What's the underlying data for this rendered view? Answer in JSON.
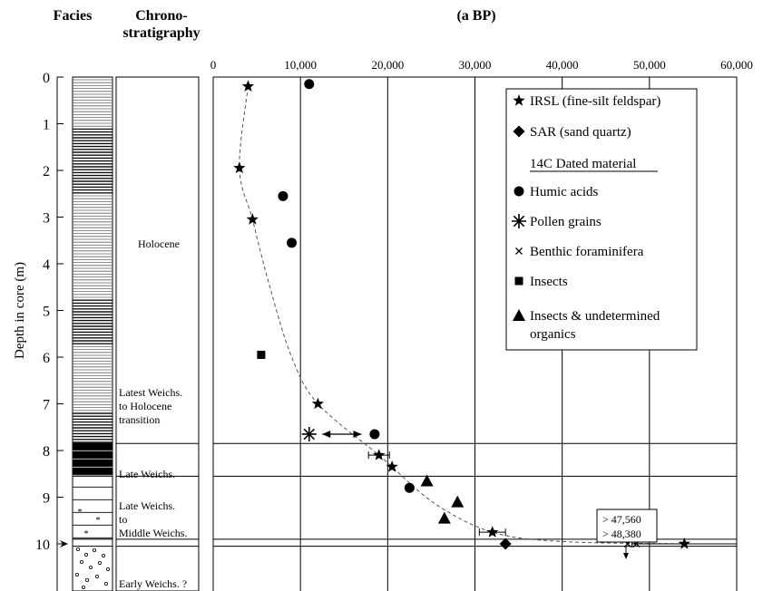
{
  "headers": {
    "facies": "Facies",
    "chrono_line1": "Chrono-",
    "chrono_line2": "stratigraphy",
    "age_unit": "(a BP)"
  },
  "chrono_units": [
    {
      "lines": [
        "Holocene"
      ],
      "top": 0,
      "bottom": 7.85
    },
    {
      "lines": [
        "Latest Weichs.",
        "to Holocene",
        "transition"
      ],
      "top": 0,
      "bottom": 7.85
    },
    {
      "lines": [
        "Late Weichs."
      ],
      "top": 7.85,
      "bottom": 8.55
    },
    {
      "lines": [
        "Late Weichs.",
        "to",
        "Middle Weichs."
      ],
      "top": 8.55,
      "bottom": 9.9
    },
    {
      "lines": [
        "Early Weichs. ?"
      ],
      "top": 10.05,
      "bottom": 10.3
    }
  ],
  "chart_data": {
    "type": "scatter",
    "xlabel": "(a BP)",
    "ylabel": "Depth in core  (m)",
    "xlim": [
      0,
      60000
    ],
    "ylim": [
      0,
      10.3
    ],
    "x_ticks": [
      0,
      10000,
      20000,
      30000,
      40000,
      50000,
      60000
    ],
    "x_tick_labels": [
      "0",
      "10,000",
      "20,000",
      "30,000",
      "40,000",
      "50,000",
      "60,000"
    ],
    "y_ticks": [
      0,
      1,
      2,
      3,
      4,
      5,
      6,
      7,
      8,
      9,
      10
    ],
    "y_tick_labels": [
      "0",
      "1",
      "2",
      "3",
      "4",
      "5",
      "6",
      "7",
      "8",
      "9",
      "10"
    ],
    "legend_position": "top-right",
    "legend_header": "14C Dated material",
    "series": [
      {
        "name": "IRSL (fine-silt feldspar)",
        "marker": "star",
        "points": [
          [
            4000,
            0.2
          ],
          [
            3000,
            1.95
          ],
          [
            4500,
            3.05
          ],
          [
            12000,
            7.0
          ],
          [
            19000,
            8.1
          ],
          [
            20500,
            8.35
          ],
          [
            32000,
            9.75
          ],
          [
            54000,
            10.0
          ]
        ]
      },
      {
        "name": "SAR (sand quartz)",
        "marker": "diamond",
        "points": [
          [
            33500,
            10.0
          ]
        ]
      },
      {
        "name": "Humic acids",
        "marker": "circle",
        "points": [
          [
            11000,
            0.15
          ],
          [
            8000,
            2.55
          ],
          [
            9000,
            3.55
          ],
          [
            18500,
            7.65
          ],
          [
            22500,
            8.8
          ]
        ]
      },
      {
        "name": "Pollen grains",
        "marker": "asterisk",
        "points": [
          [
            11000,
            7.65
          ]
        ]
      },
      {
        "name": "Benthic foraminifera",
        "marker": "x",
        "points": [
          [
            47500,
            10.0
          ],
          [
            48500,
            10.0
          ]
        ]
      },
      {
        "name": "Insects",
        "marker": "square",
        "points": [
          [
            5500,
            5.95
          ]
        ]
      },
      {
        "name": "Insects & undetermined organics",
        "marker": "triangle",
        "points": [
          [
            24500,
            8.65
          ],
          [
            28000,
            9.1
          ],
          [
            26500,
            9.45
          ]
        ]
      }
    ],
    "trend_line": [
      [
        4000,
        0.2
      ],
      [
        3000,
        1.95
      ],
      [
        4500,
        3.05
      ],
      [
        6500,
        4.5
      ],
      [
        9000,
        6.0
      ],
      [
        12000,
        7.0
      ],
      [
        19000,
        8.1
      ],
      [
        20500,
        8.35
      ],
      [
        25500,
        9.15
      ],
      [
        32000,
        9.75
      ],
      [
        40000,
        9.95
      ],
      [
        54000,
        10.0
      ]
    ],
    "error_bars": [
      {
        "y": 8.1,
        "x_min": 17800,
        "x_max": 20200
      },
      {
        "y": 9.75,
        "x_min": 30500,
        "x_max": 33500
      },
      {
        "y": 10.0,
        "x_min": 48000,
        "x_max": 60000
      }
    ],
    "range_arrow": {
      "y": 7.65,
      "x_from": 12500,
      "x_to": 17000
    },
    "horizontal_boundaries": [
      7.85,
      8.55,
      9.9,
      10.05
    ],
    "annotation": {
      "lines": [
        "> 47,560",
        "> 48,380"
      ],
      "x": 47500
    }
  }
}
